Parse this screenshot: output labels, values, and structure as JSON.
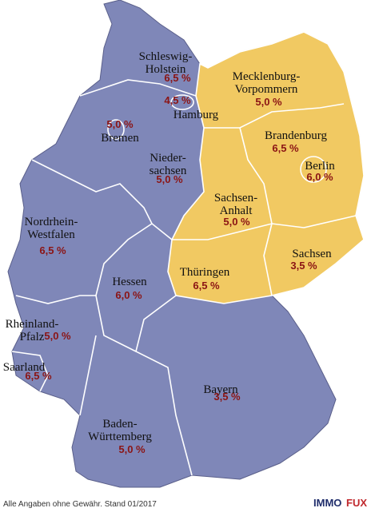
{
  "states": [
    {
      "name": [
        "Schleswig-",
        "Holstein"
      ],
      "rate": "6,5 %"
    },
    {
      "name": [
        "Hamburg"
      ],
      "rate": "4,5 %"
    },
    {
      "name": [
        "Bremen"
      ],
      "rate": "5,0 %"
    },
    {
      "name": [
        "Nieder-",
        "sachsen"
      ],
      "rate": "5,0 %"
    },
    {
      "name": [
        "Mecklenburg-",
        "Vorpommern"
      ],
      "rate": "5,0 %"
    },
    {
      "name": [
        "Brandenburg"
      ],
      "rate": "6,5 %"
    },
    {
      "name": [
        "Berlin"
      ],
      "rate": "6,0 %"
    },
    {
      "name": [
        "Sachsen-",
        "Anhalt"
      ],
      "rate": "5,0 %"
    },
    {
      "name": [
        "Sachsen"
      ],
      "rate": "3,5 %"
    },
    {
      "name": [
        "Thüringen"
      ],
      "rate": "6,5 %"
    },
    {
      "name": [
        "Nordrhein-",
        "Westfalen"
      ],
      "rate": "6,5 %"
    },
    {
      "name": [
        "Hessen"
      ],
      "rate": "6,0 %"
    },
    {
      "name": [
        "Rheinland-",
        "Pfalz"
      ],
      "rate": "5,0 %"
    },
    {
      "name": [
        "Saarland"
      ],
      "rate": "6,5 %"
    },
    {
      "name": [
        "Bayern"
      ],
      "rate": "3,5 %"
    },
    {
      "name": [
        "Baden-",
        "Württemberg"
      ],
      "rate": "5,0 %"
    }
  ],
  "footer": "Alle Angaben ohne Gewähr. Stand 01/2017",
  "logo": {
    "part1": "IMMO",
    "part2": "FUX"
  }
}
